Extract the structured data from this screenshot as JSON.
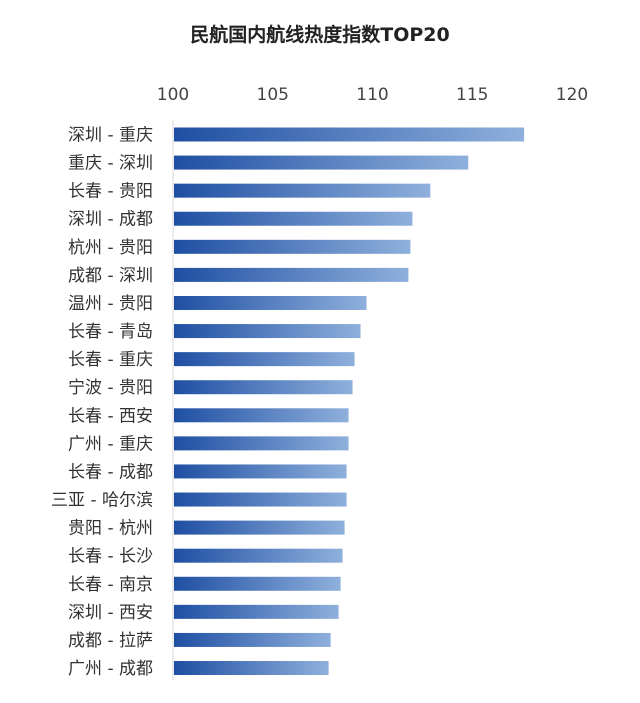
{
  "chart_data": {
    "type": "bar",
    "orientation": "horizontal",
    "title": "民航国内航线热度指数TOP20",
    "xlabel": "",
    "ylabel": "",
    "xlim": [
      100,
      120
    ],
    "x_ticks": [
      "100",
      "105",
      "110",
      "115",
      "120"
    ],
    "x_axis_position": "top",
    "grid": false,
    "legend": "none",
    "bar_gradient": [
      "#1f4fa3",
      "#8fb0dc"
    ],
    "categories": [
      "深圳 - 重庆",
      "重庆 - 深圳",
      "长春 - 贵阳",
      "深圳 - 成都",
      "杭州 - 贵阳",
      "成都 - 深圳",
      "温州 - 贵阳",
      "长春 - 青岛",
      "长春 - 重庆",
      "宁波 - 贵阳",
      "长春 - 西安",
      "广州 - 重庆",
      "长春 - 成都",
      "三亚 - 哈尔滨",
      "贵阳 - 杭州",
      "长春 - 长沙",
      "长春 - 南京",
      "深圳 - 西安",
      "成都 - 拉萨",
      "广州 - 成都"
    ],
    "values": [
      117.6,
      114.8,
      112.9,
      112.0,
      111.9,
      111.8,
      109.7,
      109.4,
      109.1,
      109.0,
      108.8,
      108.8,
      108.7,
      108.7,
      108.6,
      108.5,
      108.4,
      108.3,
      107.9,
      107.8
    ]
  }
}
